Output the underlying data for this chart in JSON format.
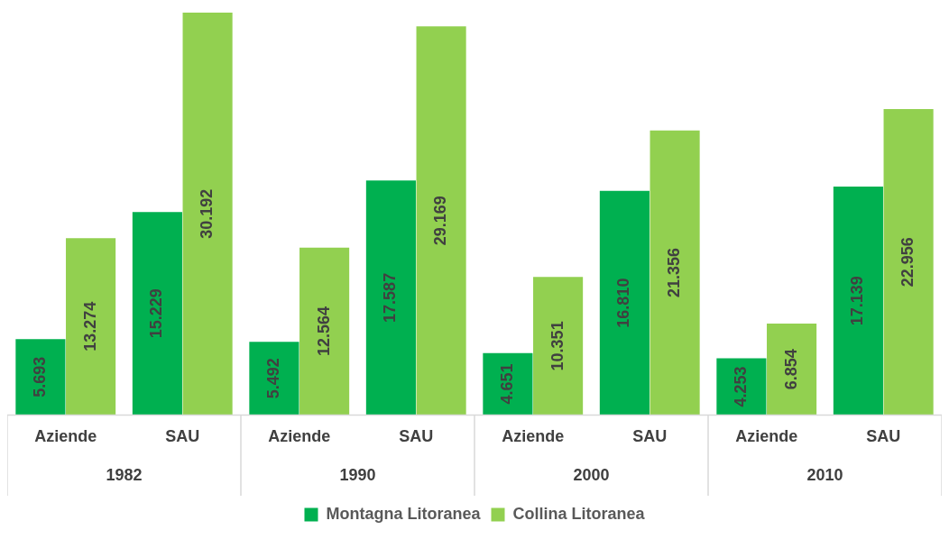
{
  "chart_data": {
    "type": "bar",
    "categories": [
      "Aziende",
      "SAU",
      "Aziende",
      "SAU",
      "Aziende",
      "SAU",
      "Aziende",
      "SAU"
    ],
    "annotations": [
      "1982",
      "1990",
      "2000",
      "2010"
    ],
    "series": [
      {
        "name": "Montagna Litoranea",
        "color": "#00b050",
        "values": [
          5.693,
          15.229,
          5.492,
          17.587,
          4.651,
          16.81,
          4.253,
          17.139
        ],
        "value_labels": [
          "5.693",
          "15.229",
          "5.492",
          "17.587",
          "4.651",
          "16.810",
          "4.253",
          "17.139"
        ]
      },
      {
        "name": "Collina Litoranea",
        "color": "#92d050",
        "values": [
          13.274,
          30.192,
          12.564,
          29.169,
          10.351,
          21.356,
          6.854,
          22.956
        ],
        "value_labels": [
          "13.274",
          "30.192",
          "12.564",
          "29.169",
          "10.351",
          "21.356",
          "6.854",
          "22.956"
        ]
      }
    ],
    "tick_labels": "x",
    "grid": false,
    "legend": "bottom"
  }
}
